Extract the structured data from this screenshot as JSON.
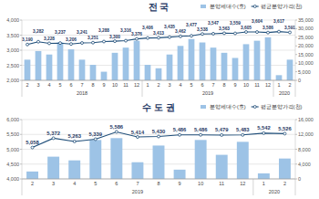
{
  "chart_data": [
    {
      "type": "combo",
      "title": "전 국",
      "legend": "top-right",
      "grid": true,
      "categories": [
        "2",
        "3",
        "4",
        "5",
        "6",
        "7",
        "8",
        "9",
        "10",
        "11",
        "12",
        "1",
        "2",
        "3",
        "4",
        "5",
        "6",
        "7",
        "8",
        "9",
        "10",
        "11",
        "12",
        "1",
        "2"
      ],
      "groups": [
        {
          "label": "2018",
          "count": 11
        },
        {
          "label": "2019",
          "count": 12
        },
        {
          "label": "2020",
          "count": 2
        }
      ],
      "ylim": [
        2000,
        4000
      ],
      "yticks": [
        {
          "value": 2000,
          "label": "2,000"
        },
        {
          "value": 2500,
          "label": "2,500"
        },
        {
          "value": 3000,
          "label": "3,000"
        },
        {
          "value": 3500,
          "label": "3,500"
        },
        {
          "value": 4000,
          "label": "4,000"
        }
      ],
      "y2lim": [
        0,
        35000
      ],
      "y2ticks": [
        0,
        {
          "value": 5000,
          "label": "5,000"
        },
        {
          "value": 10000,
          "label": "10,000"
        },
        {
          "value": 15000,
          "label": "15,000"
        },
        {
          "value": 20000,
          "label": "20,000"
        },
        {
          "value": 25000,
          "label": "25,000"
        },
        {
          "value": 30000,
          "label": "30,000"
        },
        {
          "value": 35000,
          "label": "35,000"
        }
      ],
      "series": [
        {
          "name": "분양세대수(호)",
          "type": "bar",
          "axis": "y2",
          "color": "#9dc3e6",
          "values": [
            12000,
            17000,
            15000,
            22000,
            18000,
            12000,
            9000,
            5000,
            16000,
            19000,
            23000,
            9000,
            7000,
            15000,
            20000,
            24000,
            22000,
            19000,
            16000,
            13000,
            21000,
            23000,
            25000,
            3000,
            12000
          ]
        },
        {
          "name": "평균분양가격(천)",
          "type": "line",
          "axis": "y",
          "color": "#1f4e79",
          "marker": "circle",
          "data_labels": true,
          "values": [
            3190,
            3282,
            3228,
            3237,
            3206,
            3241,
            3251,
            3288,
            3300,
            3316,
            3376,
            3406,
            3413,
            3435,
            3462,
            3477,
            3538,
            3547,
            3563,
            3559,
            3605,
            3604,
            3586,
            3617,
            3591
          ],
          "value_labels": [
            "3,190",
            "3,282",
            "3,228",
            "3,237",
            "3,206",
            "3,241",
            "3,251",
            "3,288",
            "3,300",
            "3,316",
            "3,376",
            "3,406",
            "3,413",
            "3,435",
            "3,462",
            "3,477",
            "3,538",
            "3,547",
            "3,563",
            "3,559",
            "3,605",
            "3,604",
            "3,586",
            "3,617",
            "3,591"
          ]
        }
      ]
    },
    {
      "type": "combo",
      "title": "수 도 권",
      "legend": "top-right",
      "grid": true,
      "categories": [
        "2",
        "3",
        "4",
        "5",
        "6",
        "7",
        "8",
        "9",
        "10",
        "11",
        "12",
        "1",
        "2"
      ],
      "groups": [
        {
          "label": "2019",
          "count": 11
        },
        {
          "label": "2020",
          "count": 2
        }
      ],
      "ylim": [
        4000,
        6000
      ],
      "yticks": [
        {
          "value": 4000,
          "label": "4,000"
        },
        {
          "value": 4500,
          "label": "4,500"
        },
        {
          "value": 5000,
          "label": "5,000"
        },
        {
          "value": 5500,
          "label": "5,500"
        },
        {
          "value": 6000,
          "label": "6,000"
        }
      ],
      "y2lim": [
        0,
        16000
      ],
      "y2ticks": [
        0,
        {
          "value": 4000,
          "label": "4,000"
        },
        {
          "value": 8000,
          "label": "8,000"
        },
        {
          "value": 12000,
          "label": "12,000"
        },
        {
          "value": 16000,
          "label": "16,000"
        }
      ],
      "series": [
        {
          "name": "분양세대수(호)",
          "type": "bar",
          "axis": "y2",
          "color": "#9dc3e6",
          "values": [
            2000,
            6000,
            5000,
            10500,
            11000,
            4500,
            9000,
            2500,
            10500,
            6500,
            10000,
            1500,
            5500
          ]
        },
        {
          "name": "평균분양가격(천)",
          "type": "line",
          "axis": "y",
          "color": "#1f4e79",
          "marker": "circle",
          "data_labels": true,
          "values": [
            5058,
            5372,
            5263,
            5339,
            5586,
            5414,
            5430,
            5486,
            5486,
            5479,
            5483,
            5542,
            5526
          ],
          "value_labels": [
            "5,058",
            "5,372",
            "5,263",
            "5,339",
            "5,586",
            "5,414",
            "5,430",
            "5,486",
            "5,486",
            "5,479",
            "5,483",
            "5,542",
            "5,526"
          ]
        }
      ]
    }
  ]
}
